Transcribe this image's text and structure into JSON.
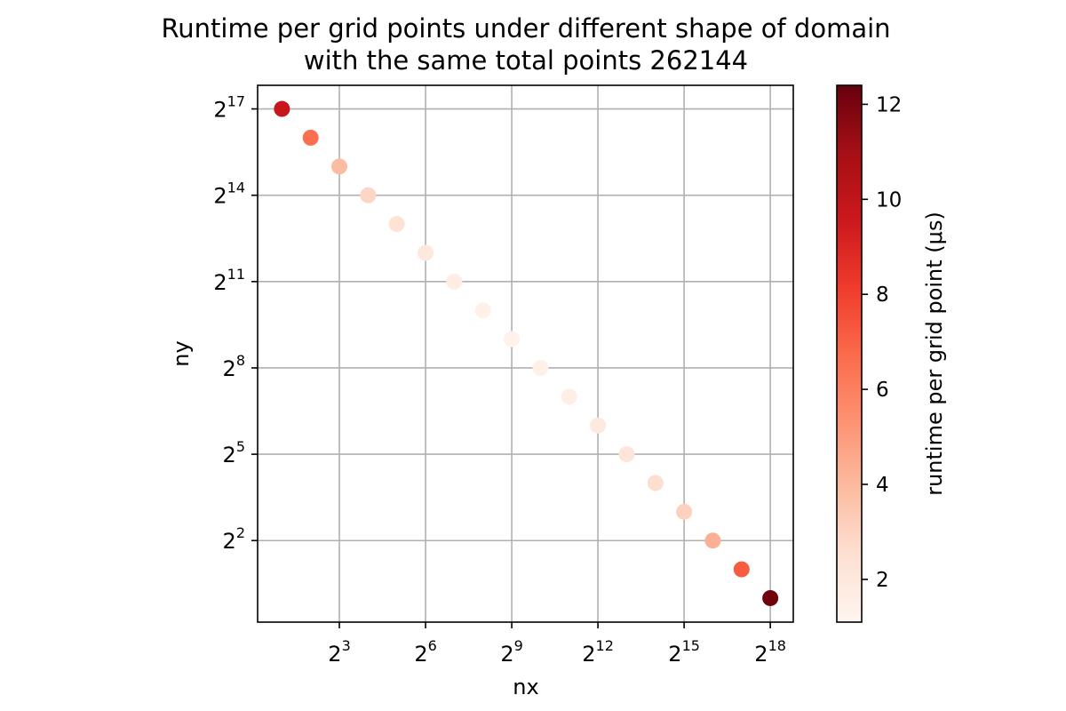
{
  "chart_data": {
    "type": "scatter",
    "title": "Runtime per grid points under different shape of domain",
    "subtitle": "with the same total points 262144",
    "xlabel": "nx",
    "ylabel": "ny",
    "x_scale": "log2",
    "y_scale": "log2",
    "x_ticks": [
      {
        "base": "2",
        "exp": "3",
        "value": 8
      },
      {
        "base": "2",
        "exp": "6",
        "value": 64
      },
      {
        "base": "2",
        "exp": "9",
        "value": 512
      },
      {
        "base": "2",
        "exp": "12",
        "value": 4096
      },
      {
        "base": "2",
        "exp": "15",
        "value": 32768
      },
      {
        "base": "2",
        "exp": "18",
        "value": 262144
      }
    ],
    "y_ticks": [
      {
        "base": "2",
        "exp": "2",
        "value": 4
      },
      {
        "base": "2",
        "exp": "5",
        "value": 32
      },
      {
        "base": "2",
        "exp": "8",
        "value": 256
      },
      {
        "base": "2",
        "exp": "11",
        "value": 2048
      },
      {
        "base": "2",
        "exp": "14",
        "value": 16384
      },
      {
        "base": "2",
        "exp": "17",
        "value": 131072
      }
    ],
    "grid": true,
    "colorbar": {
      "label": "runtime per grid point (μs)",
      "colormap": "Reds",
      "range": [
        1.1,
        12.4
      ],
      "ticks": [
        "2",
        "4",
        "6",
        "8",
        "10",
        "12"
      ]
    },
    "points": [
      {
        "x": 2,
        "y": 131072,
        "value": 9.8
      },
      {
        "x": 4,
        "y": 65536,
        "value": 6.6
      },
      {
        "x": 8,
        "y": 32768,
        "value": 3.9
      },
      {
        "x": 16,
        "y": 16384,
        "value": 2.9
      },
      {
        "x": 32,
        "y": 8192,
        "value": 2.4
      },
      {
        "x": 64,
        "y": 4096,
        "value": 2.0
      },
      {
        "x": 128,
        "y": 2048,
        "value": 1.7
      },
      {
        "x": 256,
        "y": 1024,
        "value": 1.4
      },
      {
        "x": 512,
        "y": 512,
        "value": 1.3
      },
      {
        "x": 1024,
        "y": 256,
        "value": 1.4
      },
      {
        "x": 2048,
        "y": 128,
        "value": 1.6
      },
      {
        "x": 4096,
        "y": 64,
        "value": 1.9
      },
      {
        "x": 8192,
        "y": 32,
        "value": 2.2
      },
      {
        "x": 16384,
        "y": 16,
        "value": 2.6
      },
      {
        "x": 32768,
        "y": 8,
        "value": 3.1
      },
      {
        "x": 65536,
        "y": 4,
        "value": 4.3
      },
      {
        "x": 131072,
        "y": 2,
        "value": 7.2
      },
      {
        "x": 262144,
        "y": 1,
        "value": 12.2
      }
    ]
  }
}
